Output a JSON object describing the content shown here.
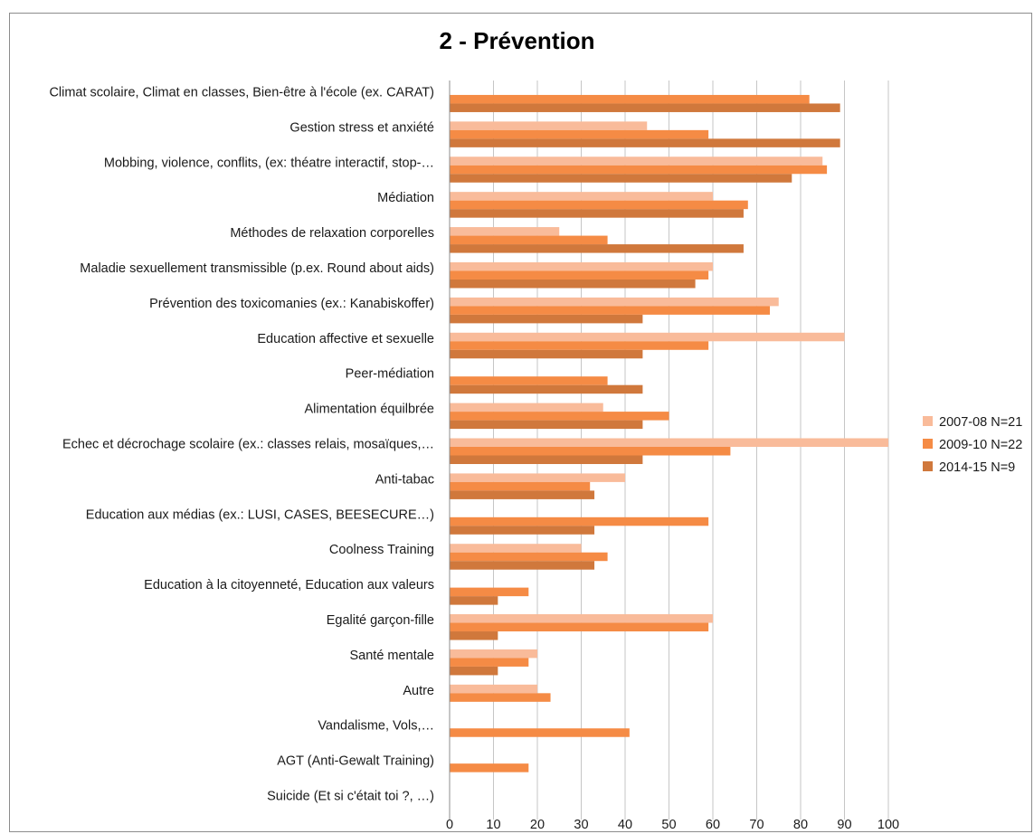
{
  "chart_data": {
    "type": "bar",
    "orientation": "horizontal",
    "title": "2 - Prévention",
    "categories": [
      "Climat scolaire, Climat en classes, Bien-être à l'école (ex. CARAT)",
      "Gestion stress et anxiété",
      "Mobbing, violence, conflits, (ex: théatre interactif, stop-…",
      "Médiation",
      "Méthodes de relaxation corporelles",
      "Maladie sexuellement transmissible (p.ex. Round about aids)",
      "Prévention des toxicomanies (ex.: Kanabiskoffer)",
      "Education affective et sexuelle",
      "Peer-médiation",
      "Alimentation équilbrée",
      "Echec et décrochage scolaire (ex.: classes relais, mosaïques,…",
      "Anti-tabac",
      "Education aux médias (ex.: LUSI, CASES, BEESECURE…)",
      "Coolness Training",
      "Education à la citoyenneté, Education aux valeurs",
      "Egalité garçon-fille",
      "Santé mentale",
      "Autre",
      "Vandalisme, Vols,…",
      "AGT (Anti-Gewalt Training)",
      "Suicide (Et si c'était toi ?, …)"
    ],
    "series": [
      {
        "name": "2007-08 N=21",
        "color": "#f9bb9a",
        "values": [
          0,
          45,
          85,
          60,
          25,
          60,
          75,
          90,
          0,
          35,
          100,
          40,
          0,
          30,
          0,
          60,
          20,
          20,
          0,
          0,
          0
        ]
      },
      {
        "name": "2009-10 N=22",
        "color": "#f58b45",
        "values": [
          82,
          59,
          86,
          68,
          36,
          59,
          73,
          59,
          36,
          50,
          64,
          32,
          59,
          36,
          18,
          59,
          18,
          23,
          41,
          18,
          0
        ]
      },
      {
        "name": "2014-15 N=9",
        "color": "#d0783c",
        "values": [
          89,
          89,
          78,
          67,
          67,
          56,
          44,
          44,
          44,
          44,
          44,
          33,
          33,
          33,
          11,
          11,
          11,
          0,
          0,
          0,
          0
        ]
      }
    ],
    "xlim": [
      0,
      100
    ],
    "x_ticks": [
      "0",
      "10",
      "20",
      "30",
      "40",
      "50",
      "60",
      "70",
      "80",
      "90",
      "100"
    ],
    "grid": "vertical",
    "legend_position": "right"
  }
}
